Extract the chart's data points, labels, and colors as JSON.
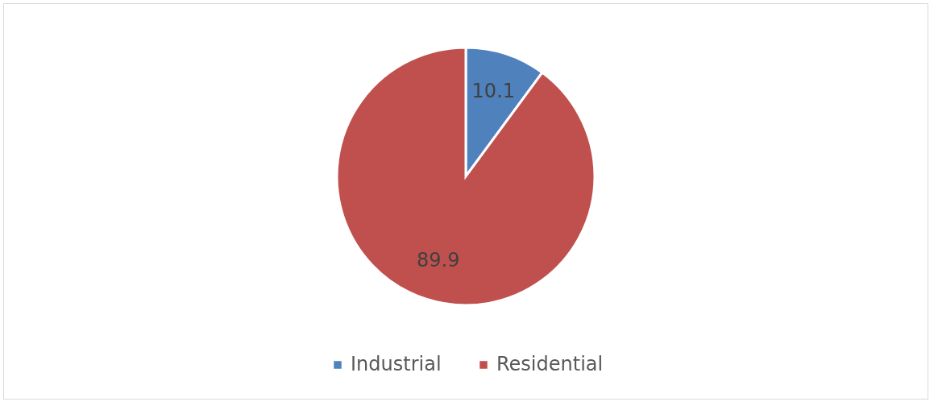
{
  "chart_data": {
    "type": "pie",
    "categories": [
      "Industrial",
      "Residential"
    ],
    "values": [
      10.1,
      89.9
    ],
    "colors": [
      "#4f81bd",
      "#c0504d"
    ],
    "data_labels": true,
    "legend": "bottom"
  }
}
